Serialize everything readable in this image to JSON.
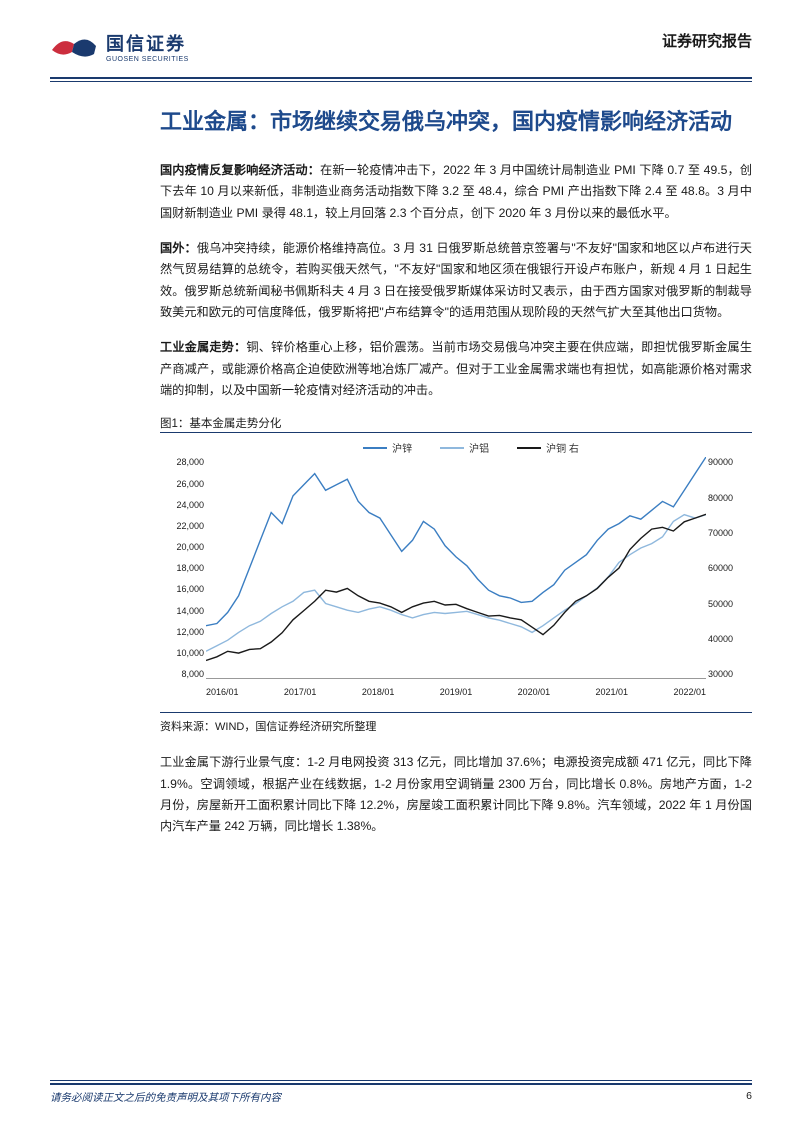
{
  "header": {
    "logo_cn": "国信证券",
    "logo_en": "GUOSEN SECURITIES",
    "report_type": "证券研究报告",
    "logo_colors": {
      "red": "#cc2e3e",
      "blue": "#1a3a6e"
    }
  },
  "title": "工业金属：市场继续交易俄乌冲突，国内疫情影响经济活动",
  "paragraphs": [
    {
      "head": "国内疫情反复影响经济活动：",
      "body": "在新一轮疫情冲击下，2022 年 3 月中国统计局制造业 PMI 下降 0.7 至 49.5，创下去年 10 月以来新低，非制造业商务活动指数下降 3.2 至 48.4，综合 PMI 产出指数下降 2.4 至 48.8。3 月中国财新制造业 PMI 录得 48.1，较上月回落 2.3 个百分点，创下 2020 年 3 月份以来的最低水平。"
    },
    {
      "head": "国外：",
      "body": "俄乌冲突持续，能源价格维持高位。3 月 31 日俄罗斯总统普京签署与\"不友好\"国家和地区以卢布进行天然气贸易结算的总统令，若购买俄天然气，\"不友好\"国家和地区须在俄银行开设卢布账户，新规 4 月 1 日起生效。俄罗斯总统新闻秘书佩斯科夫 4 月 3 日在接受俄罗斯媒体采访时又表示，由于西方国家对俄罗斯的制裁导致美元和欧元的可信度降低，俄罗斯将把\"卢布结算令\"的适用范围从现阶段的天然气扩大至其他出口货物。"
    },
    {
      "head": "工业金属走势：",
      "body": "铜、锌价格重心上移，铝价震荡。当前市场交易俄乌冲突主要在供应端，即担忧俄罗斯金属生产商减产，或能源价格高企迫使欧洲等地冶炼厂减产。但对于工业金属需求端也有担忧，如高能源价格对需求端的抑制，以及中国新一轮疫情对经济活动的冲击。"
    }
  ],
  "figure": {
    "label": "图1：基本金属走势分化",
    "source": "资料来源：WIND，国信证券经济研究所整理",
    "type": "line",
    "background_color": "#ffffff",
    "axis_color": "#333333",
    "legend": [
      {
        "name": "沪锌",
        "color": "#3b7ec2",
        "axis": "left"
      },
      {
        "name": "沪铝",
        "color": "#8fb8dd",
        "axis": "left"
      },
      {
        "name": "沪铜 右",
        "color": "#1a1a1a",
        "axis": "right"
      }
    ],
    "x_labels": [
      "2016/01",
      "2017/01",
      "2018/01",
      "2019/01",
      "2020/01",
      "2021/01",
      "2022/01"
    ],
    "y_left": {
      "min": 8000,
      "max": 28000,
      "ticks": [
        "28,000",
        "26,000",
        "24,000",
        "22,000",
        "20,000",
        "18,000",
        "16,000",
        "14,000",
        "12,000",
        "10,000",
        "8,000"
      ]
    },
    "y_right": {
      "min": 30000,
      "max": 90000,
      "ticks": [
        "90000",
        "80000",
        "70000",
        "60000",
        "50000",
        "40000",
        "30000"
      ]
    },
    "series": {
      "zinc": [
        12800,
        13000,
        14000,
        15500,
        18000,
        20500,
        23000,
        22000,
        24500,
        25500,
        26500,
        25000,
        25500,
        26000,
        24000,
        23000,
        22500,
        21000,
        19500,
        20500,
        22200,
        21500,
        20000,
        19000,
        18200,
        17000,
        16000,
        15500,
        15300,
        14900,
        15000,
        15800,
        16500,
        17800,
        18500,
        19200,
        20500,
        21500,
        22000,
        22700,
        22400,
        23200,
        24000,
        23500,
        25000,
        26500,
        28000
      ],
      "aluminum": [
        10500,
        11000,
        11500,
        12200,
        12800,
        13200,
        13900,
        14500,
        15000,
        15800,
        16000,
        14800,
        14500,
        14200,
        14000,
        14300,
        14500,
        14200,
        13800,
        13500,
        13800,
        14000,
        13900,
        14000,
        14100,
        13800,
        13500,
        13300,
        13000,
        12700,
        12200,
        12800,
        13500,
        14200,
        14800,
        15500,
        16200,
        17200,
        18500,
        19200,
        19800,
        20200,
        20800,
        22200,
        22800,
        22500,
        22800
      ],
      "copper_right": [
        35000,
        36000,
        37500,
        37000,
        38000,
        38200,
        40000,
        42500,
        46000,
        48500,
        51000,
        54000,
        53500,
        54500,
        52500,
        51000,
        50500,
        49500,
        48000,
        49500,
        50500,
        51000,
        50000,
        50200,
        49000,
        48000,
        47000,
        47200,
        46500,
        46000,
        44000,
        42000,
        44500,
        48000,
        51000,
        52500,
        54500,
        57500,
        60000,
        65000,
        68000,
        70500,
        71000,
        70000,
        72500,
        73500,
        74500
      ]
    },
    "line_width": 1.4,
    "font_size_axis": 9
  },
  "para_after": "工业金属下游行业景气度：1-2 月电网投资 313 亿元，同比增加 37.6%；电源投资完成额 471 亿元，同比下降 1.9%。空调领域，根据产业在线数据，1-2 月份家用空调销量 2300 万台，同比增长 0.8%。房地产方面，1-2 月份，房屋新开工面积累计同比下降 12.2%，房屋竣工面积累计同比下降 9.8%。汽车领域，2022 年 1 月份国内汽车产量 242 万辆，同比增长 1.38%。",
  "footer": {
    "disclaimer": "请务必阅读正文之后的免责声明及其项下所有内容",
    "page": "6"
  }
}
